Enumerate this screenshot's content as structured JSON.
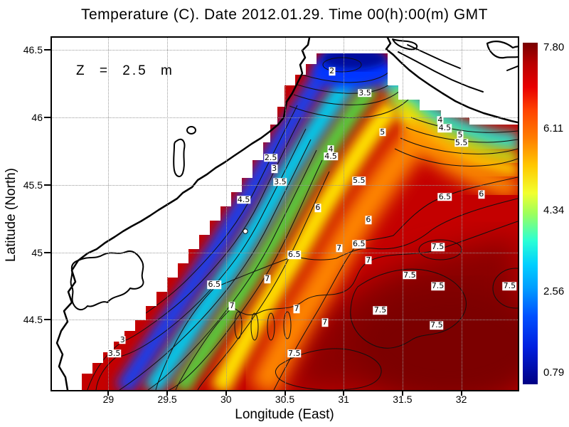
{
  "title": "Temperature (C). Date 2012.01.29. Time 00(h):00(m) GMT",
  "annotation": "Z = 2.5 m",
  "axes": {
    "x": {
      "label": "Longitude (East)",
      "ticks": [
        "29",
        "29.5",
        "30",
        "30.5",
        "31",
        "31.5",
        "32"
      ]
    },
    "y": {
      "label": "Latitude (North)",
      "ticks": [
        "46.5",
        "46",
        "45.5",
        "45",
        "44.5"
      ]
    }
  },
  "colorbar": {
    "labels": [
      "7.80",
      "6.11",
      "4.34",
      "2.56",
      "0.79"
    ],
    "min": 0.79,
    "max": 7.8,
    "colormap": "jet",
    "colormap_stops": [
      "#000083",
      "#0020e0",
      "#009cff",
      "#2affd5",
      "#9dff5c",
      "#f2ff2e",
      "#ffc800",
      "#ff7e00",
      "#e80000",
      "#780000"
    ]
  },
  "chart_data": {
    "type": "heatmap",
    "variant": "filled contour map of sea temperature with labeled isotherms and land mask",
    "title": "Temperature (C). Date 2012.01.29. Time 00(h):00(m) GMT",
    "date": "2012.01.29",
    "time_gmt": "00(h):00(m)",
    "depth_annotation": "Z = 2.5 m",
    "units": "degC",
    "xlabel": "Longitude (East)",
    "ylabel": "Latitude (North)",
    "xlim": [
      28.52,
      32.48
    ],
    "ylim": [
      43.98,
      46.59
    ],
    "xticks": [
      29,
      29.5,
      30,
      30.5,
      31,
      31.5,
      32
    ],
    "yticks": [
      44.5,
      45,
      45.5,
      46,
      46.5
    ],
    "grid": true,
    "colorbar_ticks": [
      0.79,
      2.56,
      4.34,
      6.11,
      7.8
    ],
    "value_range": [
      0.79,
      7.8
    ],
    "contour_interval": 0.5,
    "contour_levels": [
      2,
      2.5,
      3,
      3.5,
      4,
      4.5,
      5,
      5.5,
      6,
      6.5,
      7,
      7.5
    ],
    "region": "northwestern Black Sea shelf; land (white) to the west and north",
    "field_summary": "Coldest water (<2 C, dark blue) in the bay near 30.9E/46.35N and along the NW coast; temperature increases southeastward through cyan/green/yellow/orange bands to 7.5-7.8 C (dark red) in the open sea",
    "contour_labels": [
      {
        "v": "2",
        "lon": 30.9,
        "lat": 46.34
      },
      {
        "v": "3.5",
        "lon": 31.18,
        "lat": 46.18
      },
      {
        "v": "2.5",
        "lon": 30.38,
        "lat": 45.7
      },
      {
        "v": "3",
        "lon": 30.41,
        "lat": 45.62
      },
      {
        "v": "3.5",
        "lon": 30.46,
        "lat": 45.52
      },
      {
        "v": "4.5",
        "lon": 30.15,
        "lat": 45.39
      },
      {
        "v": "4",
        "lon": 31.82,
        "lat": 45.98
      },
      {
        "v": "4.5",
        "lon": 31.86,
        "lat": 45.92
      },
      {
        "v": "5",
        "lon": 31.99,
        "lat": 45.87
      },
      {
        "v": "5.5",
        "lon": 32.0,
        "lat": 45.81
      },
      {
        "v": "5",
        "lon": 31.33,
        "lat": 45.89
      },
      {
        "v": "4",
        "lon": 30.89,
        "lat": 45.76
      },
      {
        "v": "4.5",
        "lon": 30.89,
        "lat": 45.71
      },
      {
        "v": "5.5",
        "lon": 31.13,
        "lat": 45.53
      },
      {
        "v": "6",
        "lon": 30.78,
        "lat": 45.33
      },
      {
        "v": "6",
        "lon": 31.21,
        "lat": 45.24
      },
      {
        "v": "6",
        "lon": 32.17,
        "lat": 45.43
      },
      {
        "v": "6.5",
        "lon": 31.86,
        "lat": 45.41
      },
      {
        "v": "6.5",
        "lon": 31.13,
        "lat": 45.06
      },
      {
        "v": "6.5",
        "lon": 30.58,
        "lat": 44.98
      },
      {
        "v": "6.5",
        "lon": 29.9,
        "lat": 44.76
      },
      {
        "v": "7",
        "lon": 30.96,
        "lat": 45.03
      },
      {
        "v": "7",
        "lon": 31.21,
        "lat": 44.94
      },
      {
        "v": "7",
        "lon": 30.05,
        "lat": 44.6
      },
      {
        "v": "7",
        "lon": 30.35,
        "lat": 44.8
      },
      {
        "v": "7",
        "lon": 30.6,
        "lat": 44.58
      },
      {
        "v": "7",
        "lon": 30.84,
        "lat": 44.48
      },
      {
        "v": "7.5",
        "lon": 31.8,
        "lat": 45.04
      },
      {
        "v": "7.5",
        "lon": 31.56,
        "lat": 44.83
      },
      {
        "v": "7.5",
        "lon": 31.8,
        "lat": 44.75
      },
      {
        "v": "7.5",
        "lon": 32.41,
        "lat": 44.75
      },
      {
        "v": "7.5",
        "lon": 31.31,
        "lat": 44.57
      },
      {
        "v": "7.5",
        "lon": 31.79,
        "lat": 44.46
      },
      {
        "v": "7.5",
        "lon": 30.58,
        "lat": 44.25
      },
      {
        "v": "3",
        "lon": 29.12,
        "lat": 44.35
      },
      {
        "v": "3.5",
        "lon": 29.05,
        "lat": 44.25
      }
    ],
    "sample_points": [
      {
        "lon": 30.9,
        "lat": 46.35,
        "t": 1.8
      },
      {
        "lon": 31.1,
        "lat": 46.25,
        "t": 3.0
      },
      {
        "lon": 30.5,
        "lat": 46.0,
        "t": 3.8
      },
      {
        "lon": 31.0,
        "lat": 46.0,
        "t": 4.2
      },
      {
        "lon": 31.7,
        "lat": 46.0,
        "t": 4.6
      },
      {
        "lon": 32.3,
        "lat": 45.9,
        "t": 5.2
      },
      {
        "lon": 30.2,
        "lat": 45.5,
        "t": 4.5
      },
      {
        "lon": 30.8,
        "lat": 45.5,
        "t": 5.8
      },
      {
        "lon": 31.5,
        "lat": 45.5,
        "t": 6.3
      },
      {
        "lon": 32.2,
        "lat": 45.5,
        "t": 6.5
      },
      {
        "lon": 29.8,
        "lat": 45.0,
        "t": 6.8
      },
      {
        "lon": 30.5,
        "lat": 45.0,
        "t": 7.1
      },
      {
        "lon": 31.5,
        "lat": 45.0,
        "t": 7.4
      },
      {
        "lon": 32.3,
        "lat": 45.0,
        "t": 7.5
      },
      {
        "lon": 29.1,
        "lat": 44.2,
        "t": 3.5
      },
      {
        "lon": 29.5,
        "lat": 44.3,
        "t": 6.0
      },
      {
        "lon": 30.0,
        "lat": 44.3,
        "t": 7.2
      },
      {
        "lon": 31.0,
        "lat": 44.3,
        "t": 7.6
      },
      {
        "lon": 32.0,
        "lat": 44.3,
        "t": 7.6
      }
    ]
  }
}
